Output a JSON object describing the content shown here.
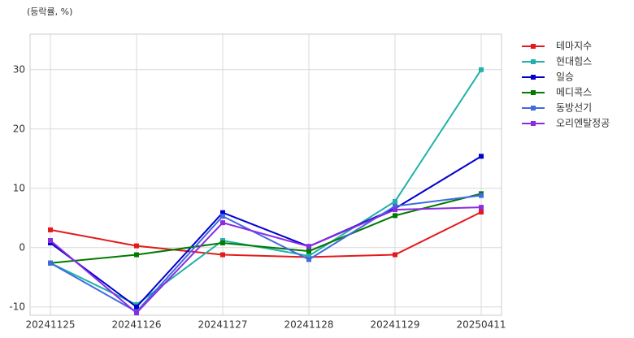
{
  "chart_data": {
    "type": "line",
    "y_label": "(등락률, %)",
    "categories": [
      "20241125",
      "20241126",
      "20241127",
      "20241128",
      "20241129",
      "20250411"
    ],
    "series": [
      {
        "name": "테마지수",
        "color": "#e31a1c",
        "values": [
          3.0,
          0.3,
          -1.2,
          -1.6,
          -1.2,
          6.0
        ]
      },
      {
        "name": "현대힘스",
        "color": "#20b2aa",
        "values": [
          -2.6,
          -9.6,
          1.2,
          -1.4,
          7.8,
          30.0
        ]
      },
      {
        "name": "일승",
        "color": "#0000cd",
        "values": [
          0.8,
          -10.0,
          5.9,
          0.2,
          6.6,
          15.4
        ]
      },
      {
        "name": "메디콕스",
        "color": "#007a00",
        "values": [
          -2.6,
          -1.2,
          0.8,
          -0.6,
          5.4,
          9.1
        ]
      },
      {
        "name": "동방선기",
        "color": "#4169e1",
        "values": [
          -2.6,
          -10.8,
          5.3,
          -2.0,
          7.0,
          8.8
        ]
      },
      {
        "name": "오리엔탈정공",
        "color": "#8a2be2",
        "values": [
          1.2,
          -11.0,
          4.2,
          0.2,
          6.4,
          6.8
        ]
      }
    ],
    "ylim": [
      -11.4,
      36
    ],
    "yticks": [
      -10,
      0,
      10,
      20,
      30
    ],
    "grid": true
  }
}
